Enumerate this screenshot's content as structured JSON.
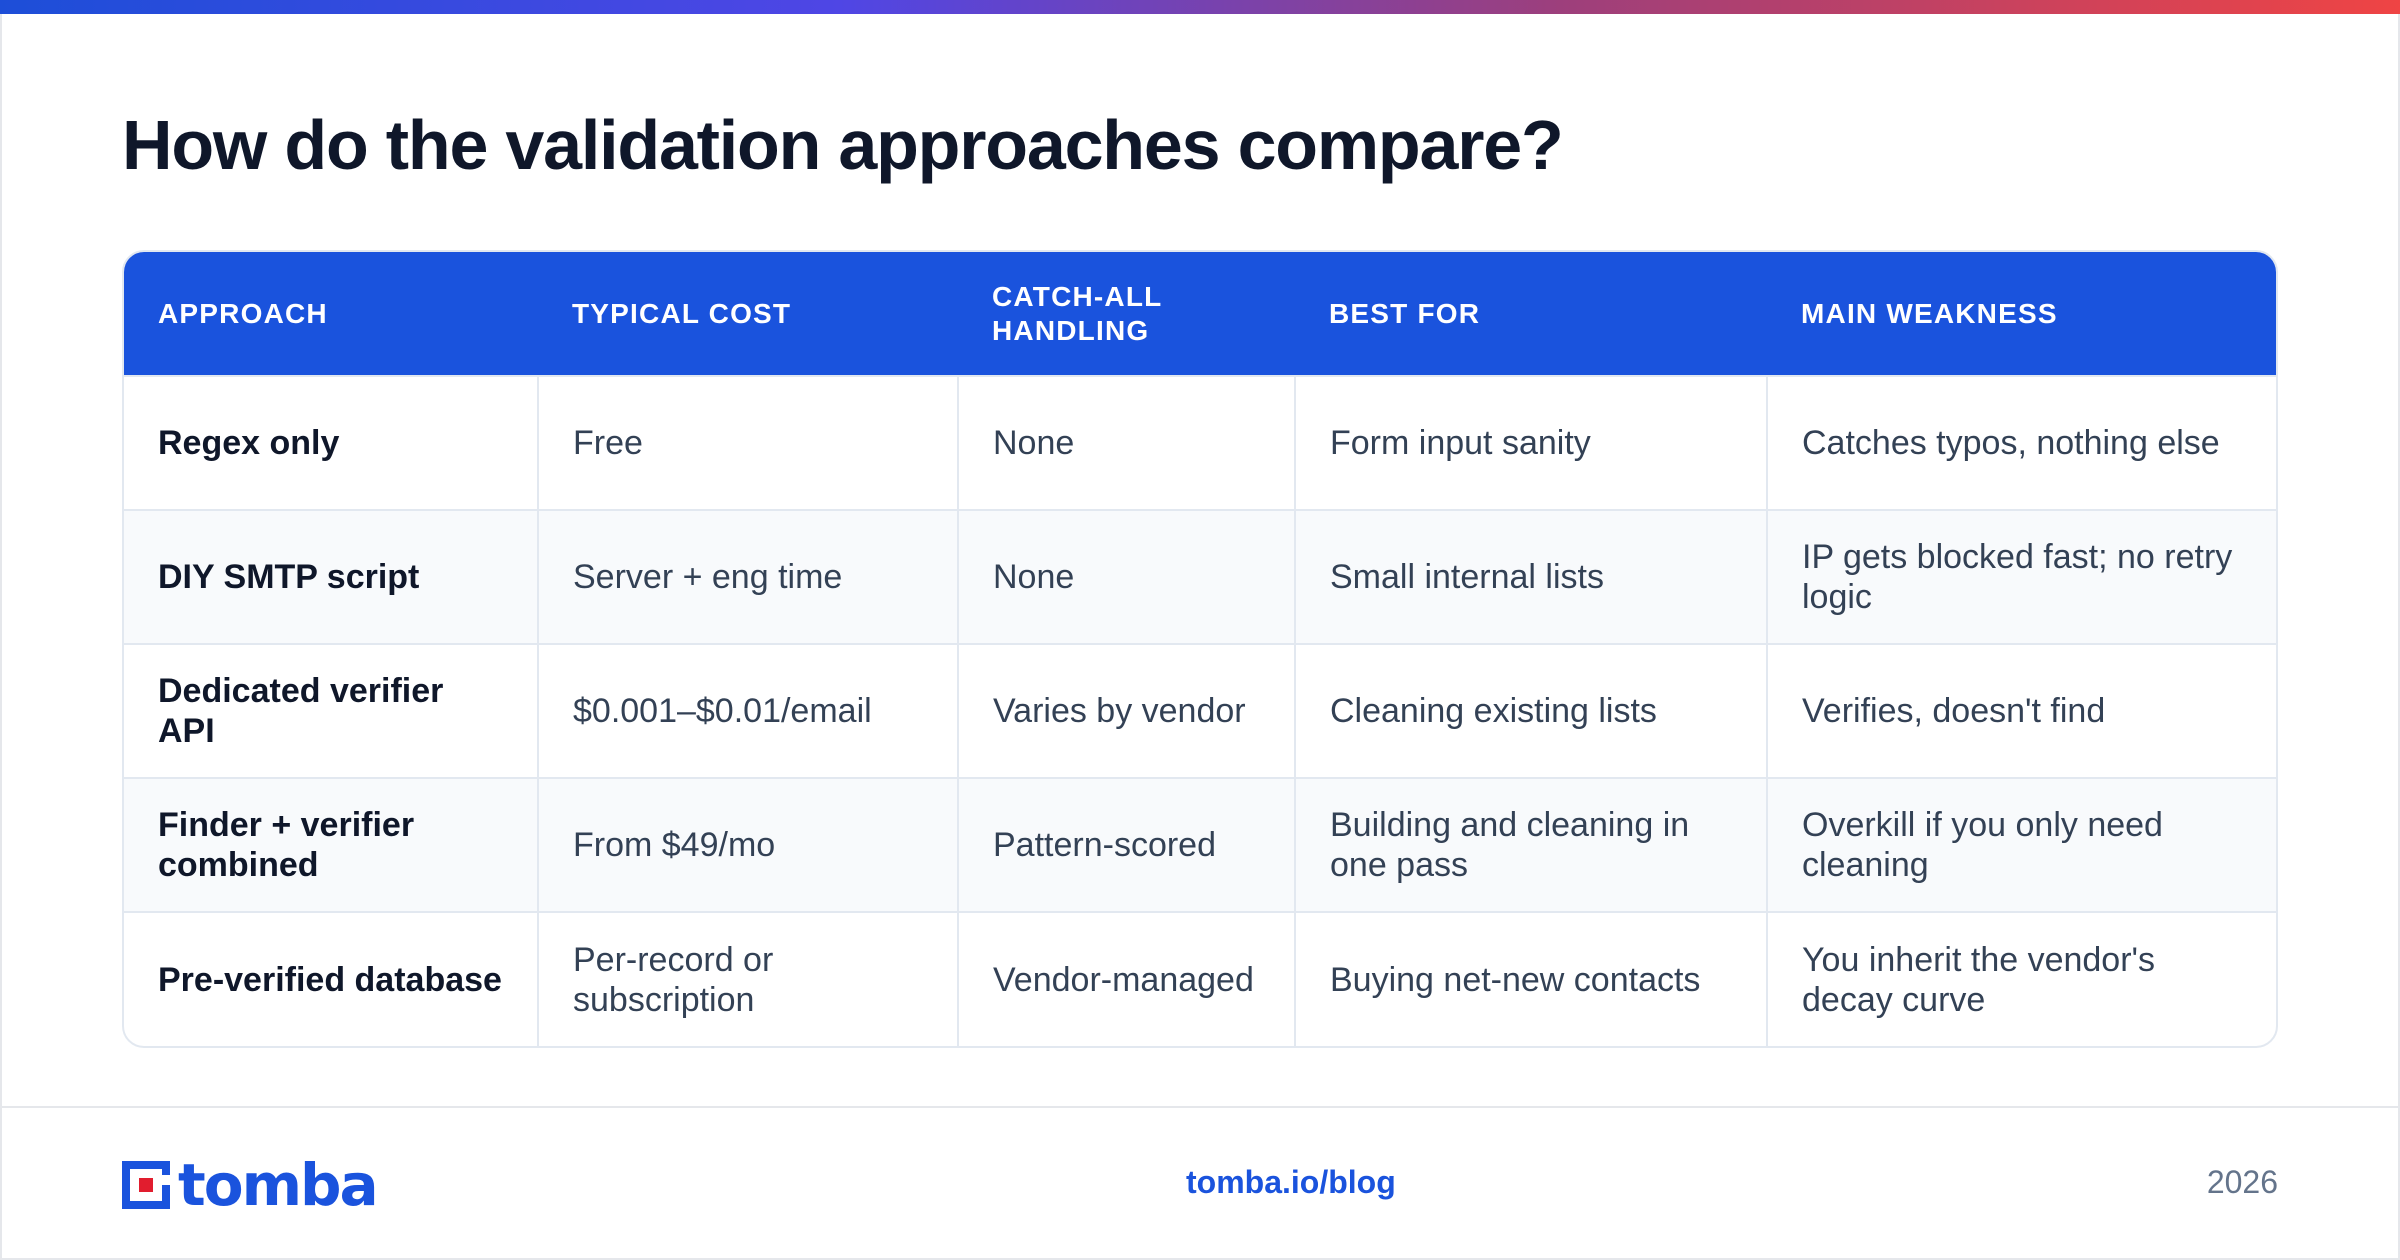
{
  "page": {
    "title": "How do the validation approaches compare?"
  },
  "table": {
    "headers": [
      "APPROACH",
      "TYPICAL COST",
      "CATCH-ALL HANDLING",
      "BEST FOR",
      "MAIN WEAKNESS"
    ],
    "rows": [
      [
        "Regex only",
        "Free",
        "None",
        "Form input sanity",
        "Catches typos, nothing else"
      ],
      [
        "DIY SMTP script",
        "Server + eng time",
        "None",
        "Small internal lists",
        "IP gets blocked fast; no retry logic"
      ],
      [
        "Dedicated verifier API",
        "$0.001–$0.01/email",
        "Varies by vendor",
        "Cleaning existing lists",
        "Verifies, doesn't find"
      ],
      [
        "Finder + verifier combined",
        "From $49/mo",
        "Pattern-scored",
        "Building and cleaning in one pass",
        "Overkill if you only need cleaning"
      ],
      [
        "Pre-verified database",
        "Per-record or subscription",
        "Vendor-managed",
        "Buying net-new contacts",
        "You inherit the vendor's decay curve"
      ]
    ]
  },
  "footer": {
    "logo_text": "tomba",
    "link": "tomba.io/blog",
    "year": "2026"
  },
  "colors": {
    "accent": "#1a53dd",
    "logo_red": "#e11d2e",
    "title": "#0f172a",
    "body_text": "#334155",
    "muted": "#64748b"
  }
}
